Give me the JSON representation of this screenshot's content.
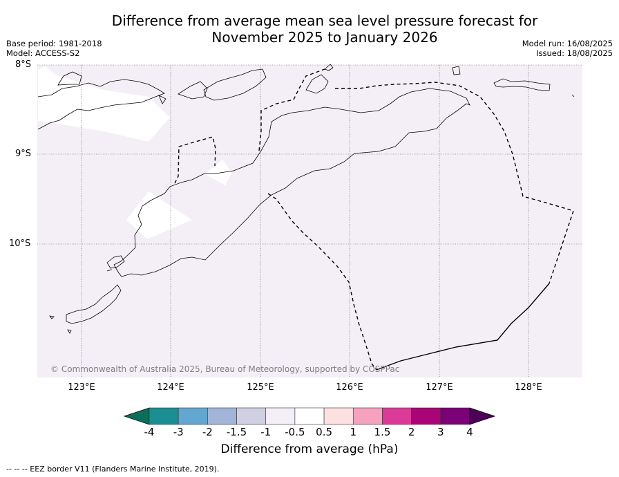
{
  "title_line1": "Difference from average mean sea level pressure forecast for",
  "title_line2": "November 2025 to January 2026",
  "base_period": "Base period: 1981-2018",
  "model": "Model: ACCESS-S2",
  "model_run": "Model run: 16/08/2025",
  "issued": "Issued: 18/08/2025",
  "latitudes": [
    "8°S",
    "9°S",
    "10°S"
  ],
  "longitudes": [
    "123°E",
    "124°E",
    "125°E",
    "126°E",
    "127°E",
    "128°E"
  ],
  "copyright": "© Commonwealth of Australia 2025, Bureau of Meteorology, supported by COSPPac",
  "colorbar": {
    "title": "Difference from average (hPa)",
    "ticks": [
      "-4",
      "-3",
      "-2",
      "-1.5",
      "-1",
      "-0.5",
      "0.5",
      "1",
      "1.5",
      "2",
      "3",
      "4"
    ],
    "colors": [
      "#1a8e93",
      "#63a6cf",
      "#a2b4d7",
      "#d0cfe3",
      "#f4eef7",
      "#ffffff",
      "#fde1e1",
      "#f6a1be",
      "#dc3a98",
      "#aa0477",
      "#7a0177"
    ],
    "under_color": "#0a6f5a",
    "over_color": "#4d0057"
  },
  "map_fill_color": "#f4eef7",
  "footer": "--  --  -- EEZ border V11 (Flanders Marine Institute, 2019)."
}
